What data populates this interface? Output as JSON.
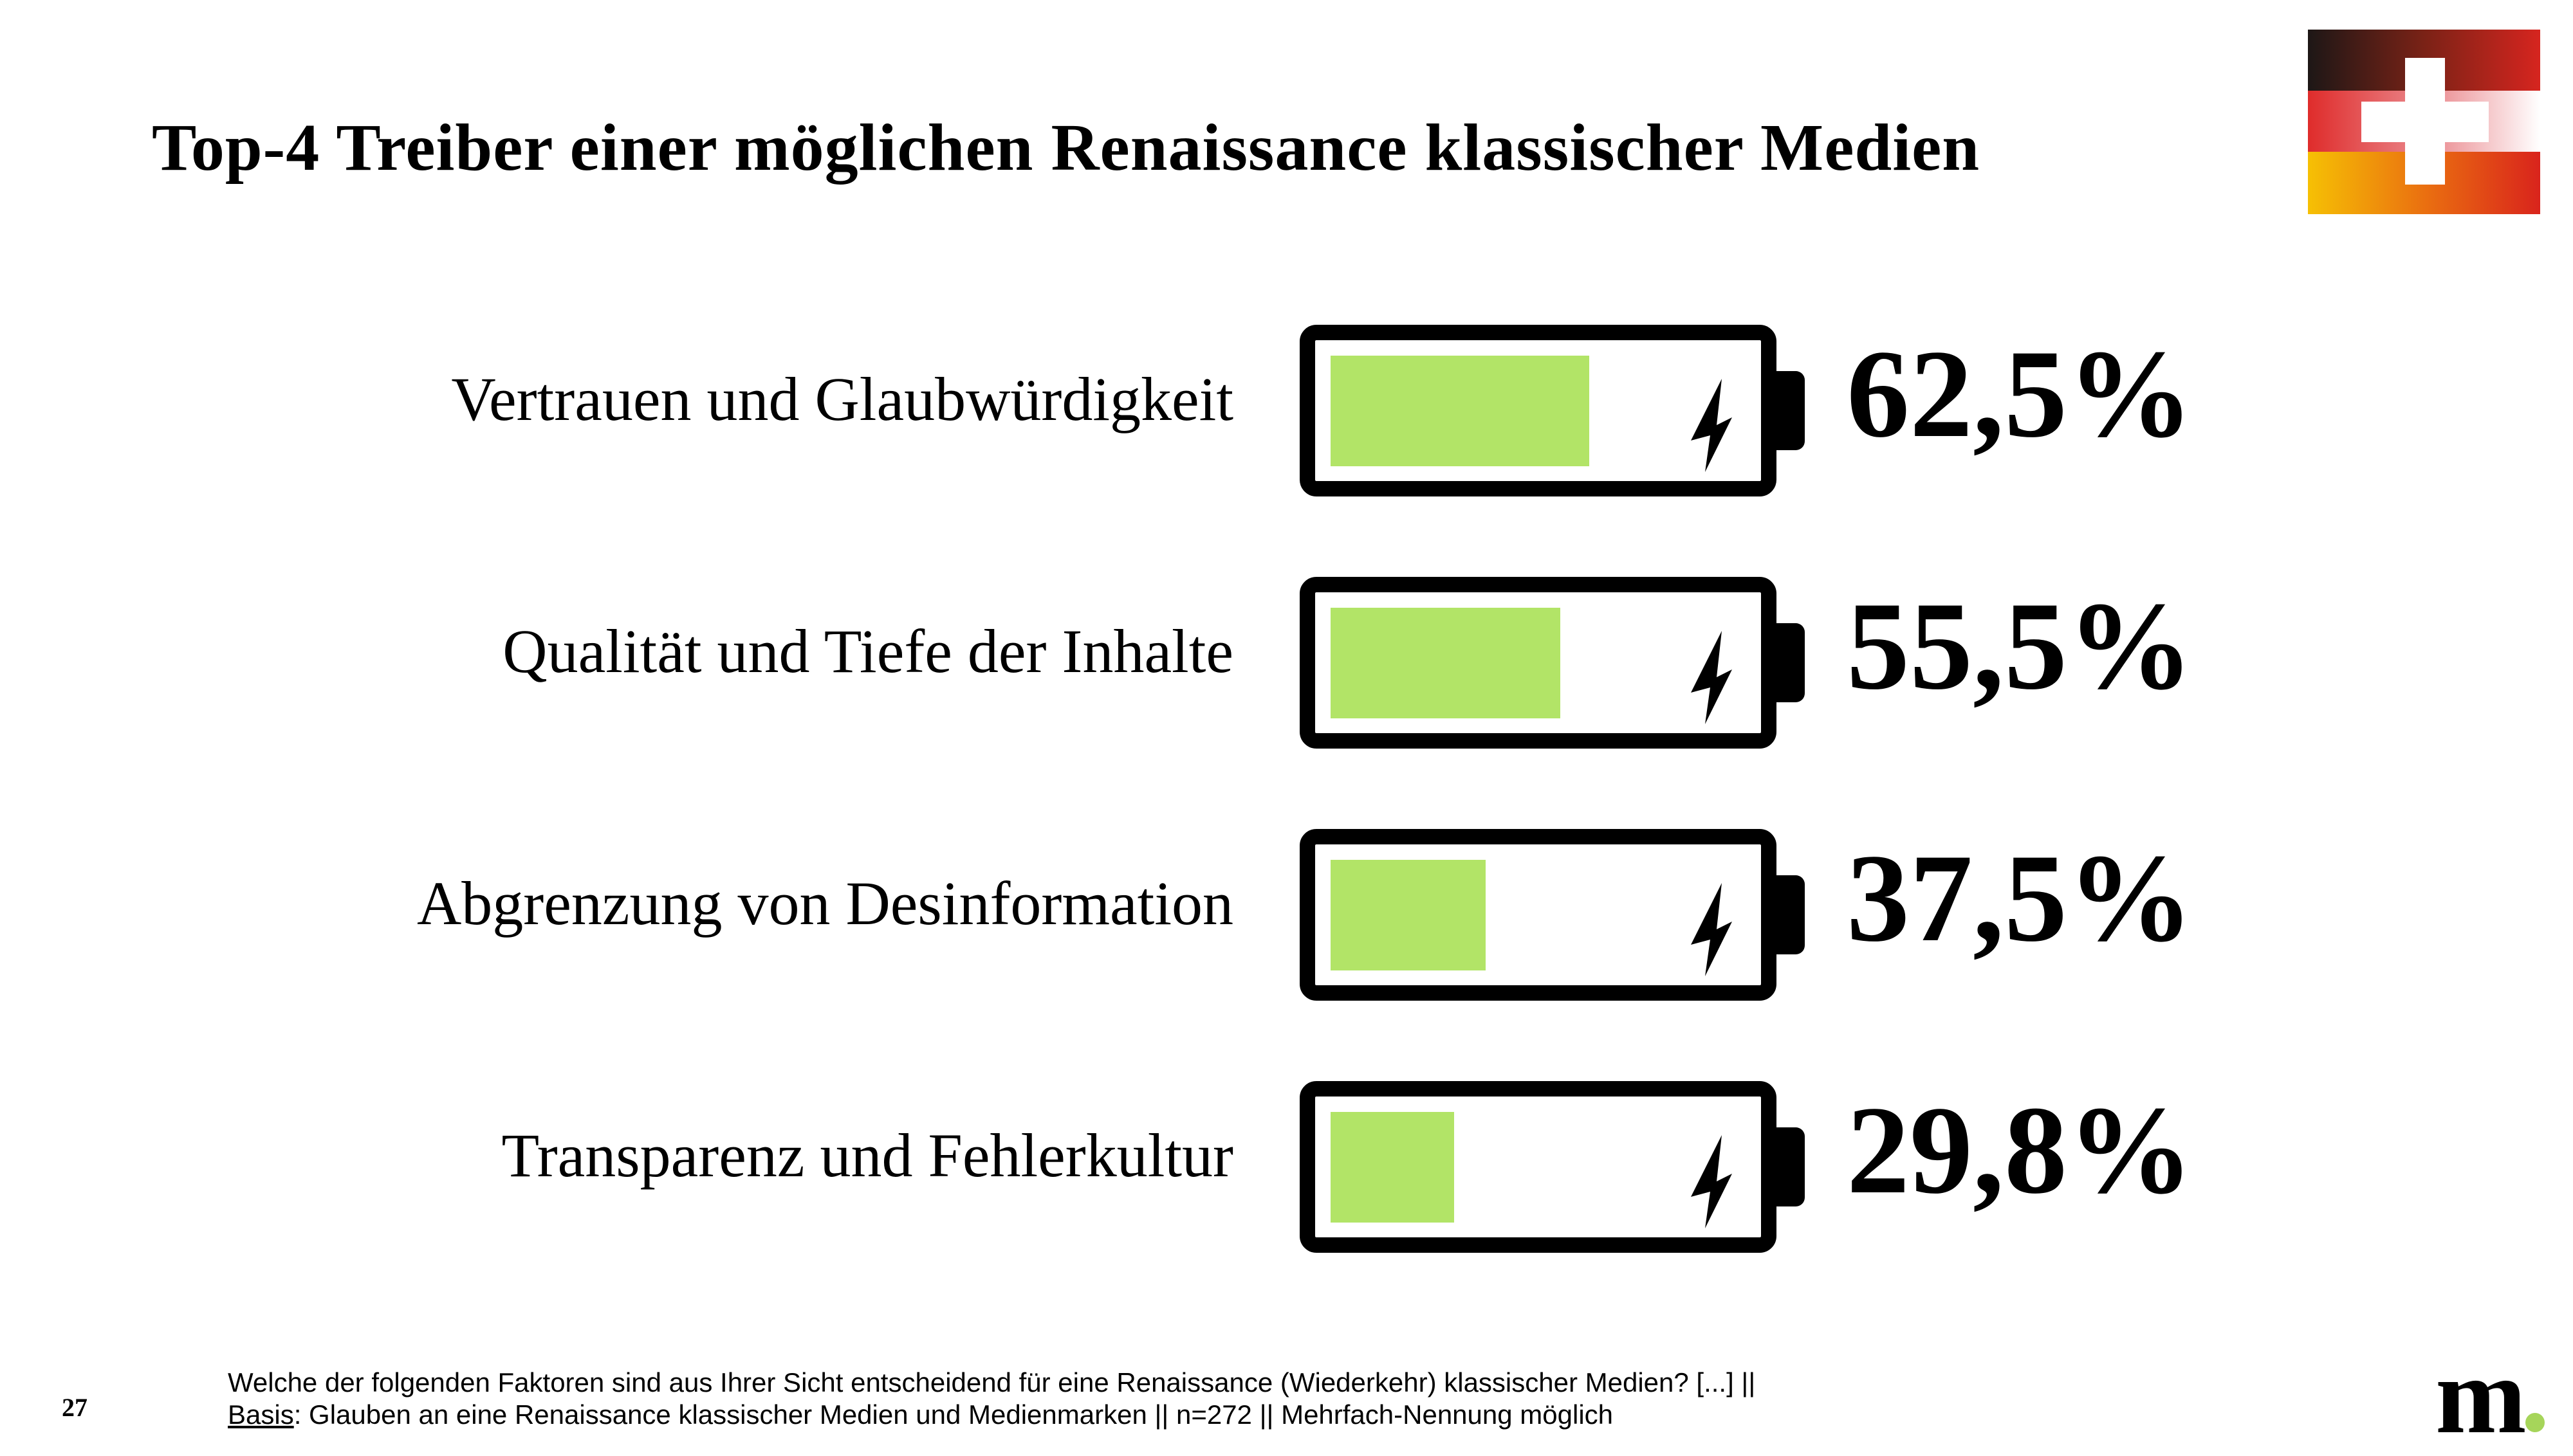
{
  "header": {
    "title": "Top-4 Treiber einer möglichen Renaissance klassischer Medien",
    "logo": "german-swiss-flag-logo"
  },
  "chart_data": {
    "type": "bar",
    "style": "battery-icons",
    "title": "Top-4 Treiber einer möglichen Renaissance klassischer Medien",
    "categories": [
      "Vertrauen und Glaubwürdigkeit",
      "Qualität und Tiefe der Inhalte",
      "Abgrenzung von Desinformation",
      "Transparenz und Fehlerkultur"
    ],
    "values": [
      62.5,
      55.5,
      37.5,
      29.8
    ],
    "value_labels": [
      "62,5%",
      "55,5%",
      "37,5%",
      "29,8%"
    ],
    "xlim": [
      0,
      100
    ],
    "unit": "%",
    "colors": {
      "fill": "#b2e467",
      "outline": "#000000"
    }
  },
  "footer": {
    "question": "Welche der folgenden Faktoren sind aus Ihrer Sicht entscheidend für eine Renaissance (Wiederkehr) klassischer Medien? [...] ||",
    "basis_label": "Basis",
    "basis_text": ": Glauben an eine Renaissance klassischer Medien und Medienmarken || n=272 || Mehrfach-Nennung möglich",
    "page_number": "27",
    "brand_logo": "m.",
    "brand_dot_color": "#a6d55a"
  }
}
